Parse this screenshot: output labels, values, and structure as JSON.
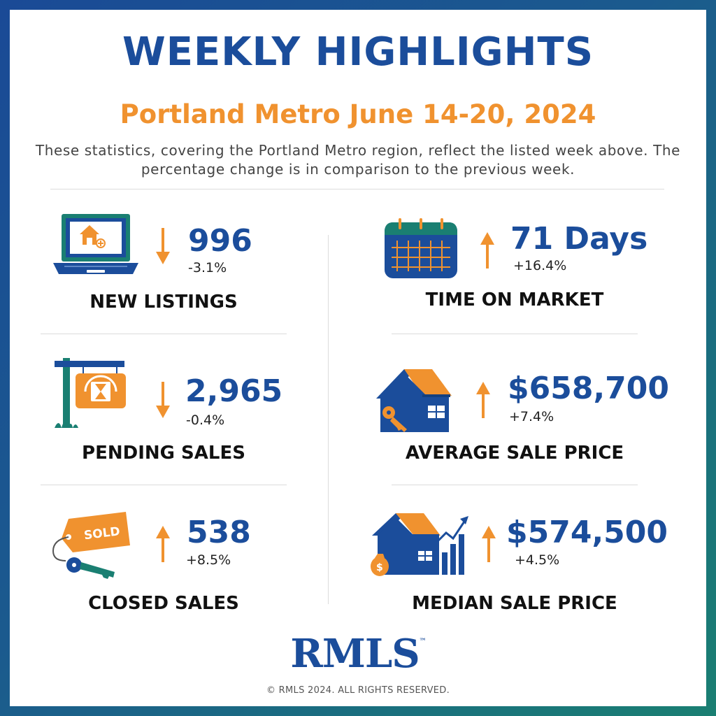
{
  "header": {
    "title": "WEEKLY HIGHLIGHTS",
    "subtitle": "Portland Metro June 14-20, 2024",
    "description": "These statistics, covering the Portland Metro region, reflect the listed week above. The percentage change is in comparison to the previous week."
  },
  "stats": {
    "new_listings": {
      "value": "996",
      "change": "-3.1%",
      "label": "NEW LISTINGS",
      "direction": "down"
    },
    "time_on_market": {
      "value": "71 Days",
      "change": "+16.4%",
      "label": "TIME ON MARKET",
      "direction": "up"
    },
    "pending_sales": {
      "value": "2,965",
      "change": "-0.4%",
      "label": "PENDING SALES",
      "direction": "down"
    },
    "average_sale_price": {
      "value": "$658,700",
      "change": "+7.4%",
      "label": "AVERAGE SALE PRICE",
      "direction": "up"
    },
    "closed_sales": {
      "value": "538",
      "change": "+8.5%",
      "label": "CLOSED SALES",
      "direction": "up",
      "tag_text": "SOLD"
    },
    "median_sale_price": {
      "value": "$574,500",
      "change": "+4.5%",
      "label": "MEDIAN SALE PRICE",
      "direction": "up"
    }
  },
  "footer": {
    "logo": "RMLS",
    "trademark": "™",
    "copyright": "© RMLS 2024. ALL RIGHTS RESERVED."
  },
  "colors": {
    "blue": "#1b4d9b",
    "orange": "#f0922f",
    "teal": "#1a7f72"
  },
  "icons": [
    "laptop-house-icon",
    "calendar-icon",
    "for-sale-sign-icon",
    "house-key-icon",
    "sold-tag-keys-icon",
    "house-chart-icon",
    "arrow-down-icon",
    "arrow-up-icon"
  ]
}
